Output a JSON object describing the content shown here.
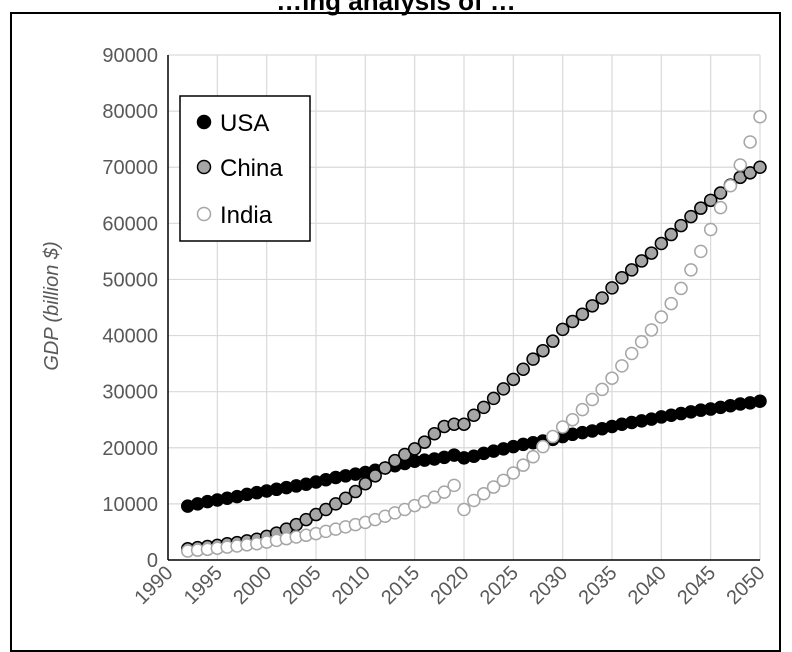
{
  "chart_data": {
    "type": "scatter",
    "title": "…ing analysis of …",
    "xlabel": "",
    "ylabel": "GDP (billion $)",
    "xlim": [
      1990,
      2050
    ],
    "ylim": [
      0,
      90000
    ],
    "x_ticks": [
      "1990",
      "1995",
      "2000",
      "2005",
      "2010",
      "2015",
      "2020",
      "2025",
      "2030",
      "2035",
      "2040",
      "2045",
      "2050"
    ],
    "y_ticks": [
      "0",
      "10000",
      "20000",
      "30000",
      "40000",
      "50000",
      "60000",
      "70000",
      "80000",
      "90000"
    ],
    "grid": true,
    "legend_position": "top-left",
    "series": [
      {
        "name": "USA",
        "fill": "#000000",
        "stroke": "#000000",
        "x": [
          1992,
          1993,
          1994,
          1995,
          1996,
          1997,
          1998,
          1999,
          2000,
          2001,
          2002,
          2003,
          2004,
          2005,
          2006,
          2007,
          2008,
          2009,
          2010,
          2011,
          2012,
          2013,
          2014,
          2015,
          2016,
          2017,
          2018,
          2019,
          2020,
          2021,
          2022,
          2023,
          2024,
          2025,
          2026,
          2027,
          2028,
          2029,
          2030,
          2031,
          2032,
          2033,
          2034,
          2035,
          2036,
          2037,
          2038,
          2039,
          2040,
          2041,
          2042,
          2043,
          2044,
          2045,
          2046,
          2047,
          2048,
          2049,
          2050
        ],
        "y": [
          9600,
          10000,
          10400,
          10700,
          11000,
          11300,
          11700,
          12000,
          12300,
          12600,
          12900,
          13200,
          13500,
          13900,
          14300,
          14700,
          15000,
          15300,
          15600,
          16000,
          16400,
          16800,
          17200,
          17600,
          17800,
          18000,
          18300,
          18700,
          18200,
          18500,
          19000,
          19400,
          19800,
          20200,
          20600,
          20900,
          21200,
          21500,
          22000,
          22400,
          22700,
          23000,
          23400,
          23800,
          24200,
          24500,
          24800,
          25100,
          25500,
          25800,
          26100,
          26400,
          26700,
          26900,
          27200,
          27500,
          27800,
          28000,
          28300
        ]
      },
      {
        "name": "China",
        "fill": "#a6a6a6",
        "stroke": "#000000",
        "x": [
          1992,
          1993,
          1994,
          1995,
          1996,
          1997,
          1998,
          1999,
          2000,
          2001,
          2002,
          2003,
          2004,
          2005,
          2006,
          2007,
          2008,
          2009,
          2010,
          2011,
          2012,
          2013,
          2014,
          2015,
          2016,
          2017,
          2018,
          2019,
          2020,
          2021,
          2022,
          2023,
          2024,
          2025,
          2026,
          2027,
          2028,
          2029,
          2030,
          2031,
          2032,
          2033,
          2034,
          2035,
          2036,
          2037,
          2038,
          2039,
          2040,
          2041,
          2042,
          2043,
          2044,
          2045,
          2046,
          2047,
          2048,
          2049,
          2050
        ],
        "y": [
          2000,
          2200,
          2400,
          2600,
          2900,
          3100,
          3400,
          3700,
          4200,
          4800,
          5500,
          6300,
          7200,
          8100,
          9000,
          10000,
          11000,
          12200,
          13600,
          15000,
          16400,
          17700,
          18800,
          19800,
          21000,
          22500,
          23800,
          24200,
          24200,
          25800,
          27200,
          28800,
          30500,
          32200,
          34000,
          35800,
          37300,
          39000,
          41100,
          42500,
          43800,
          45300,
          46700,
          48500,
          50300,
          51700,
          53300,
          54700,
          56400,
          58000,
          59600,
          61200,
          62700,
          64100,
          65400,
          66800,
          68200,
          69000,
          70000
        ]
      },
      {
        "name": "India",
        "fill": "#ffffff",
        "stroke": "#a6a6a6",
        "x": [
          1992,
          1993,
          1994,
          1995,
          1996,
          1997,
          1998,
          1999,
          2000,
          2001,
          2002,
          2003,
          2004,
          2005,
          2006,
          2007,
          2008,
          2009,
          2010,
          2011,
          2012,
          2013,
          2014,
          2015,
          2016,
          2017,
          2018,
          2019,
          2020,
          2021,
          2022,
          2023,
          2024,
          2025,
          2026,
          2027,
          2028,
          2029,
          2030,
          2031,
          2032,
          2033,
          2034,
          2035,
          2036,
          2037,
          2038,
          2039,
          2040,
          2041,
          2042,
          2043,
          2044,
          2045,
          2046,
          2047,
          2048,
          2049,
          2050
        ],
        "y": [
          1600,
          1750,
          1900,
          2100,
          2300,
          2500,
          2700,
          2900,
          3200,
          3500,
          3800,
          4100,
          4400,
          4700,
          5100,
          5500,
          5900,
          6300,
          6700,
          7200,
          7800,
          8400,
          9000,
          9700,
          10400,
          11200,
          12100,
          13300,
          9000,
          10600,
          11800,
          13000,
          14200,
          15500,
          16900,
          18400,
          20200,
          22000,
          23700,
          25000,
          26800,
          28600,
          30400,
          32400,
          34600,
          36800,
          38900,
          41000,
          43300,
          45700,
          48400,
          51700,
          55000,
          58900,
          62800,
          66700,
          70400,
          74500,
          79000
        ]
      }
    ]
  }
}
